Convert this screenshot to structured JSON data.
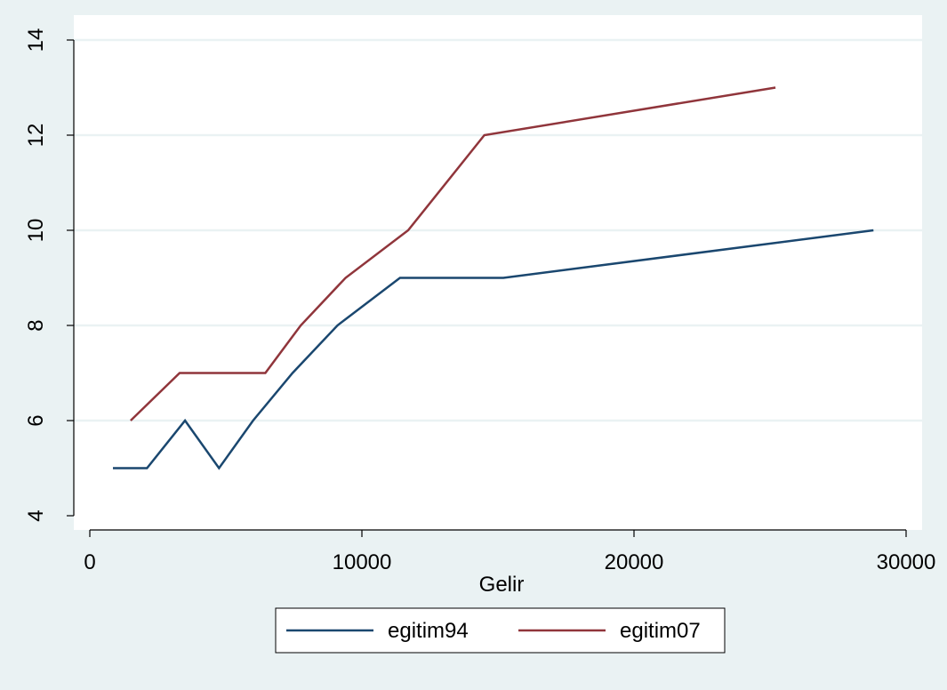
{
  "chart_data": {
    "type": "line",
    "xlabel": "Gelir",
    "ylabel": "",
    "xlim": [
      0,
      30000
    ],
    "ylim": [
      4,
      14
    ],
    "xticks": [
      0,
      10000,
      20000,
      30000
    ],
    "yticks": [
      4,
      6,
      8,
      10,
      12,
      14
    ],
    "xtick_labels": [
      "0",
      "10000",
      "20000",
      "30000"
    ],
    "ytick_labels": [
      "4",
      "6",
      "8",
      "10",
      "12",
      "14"
    ],
    "grid": "horizontal",
    "legend_position": "bottom",
    "series": [
      {
        "name": "egitim94",
        "color": "#1a476f",
        "points": [
          [
            850,
            5
          ],
          [
            2100,
            5
          ],
          [
            3500,
            6
          ],
          [
            4750,
            5
          ],
          [
            6000,
            6
          ],
          [
            7450,
            7
          ],
          [
            9100,
            8
          ],
          [
            11400,
            9
          ],
          [
            15200,
            9
          ],
          [
            28800,
            10
          ]
        ]
      },
      {
        "name": "egitim07",
        "color": "#90353b",
        "points": [
          [
            1500,
            6
          ],
          [
            3300,
            7
          ],
          [
            6450,
            7
          ],
          [
            7750,
            8
          ],
          [
            9400,
            9
          ],
          [
            11700,
            10
          ],
          [
            14500,
            12
          ],
          [
            25200,
            13
          ]
        ]
      }
    ]
  }
}
